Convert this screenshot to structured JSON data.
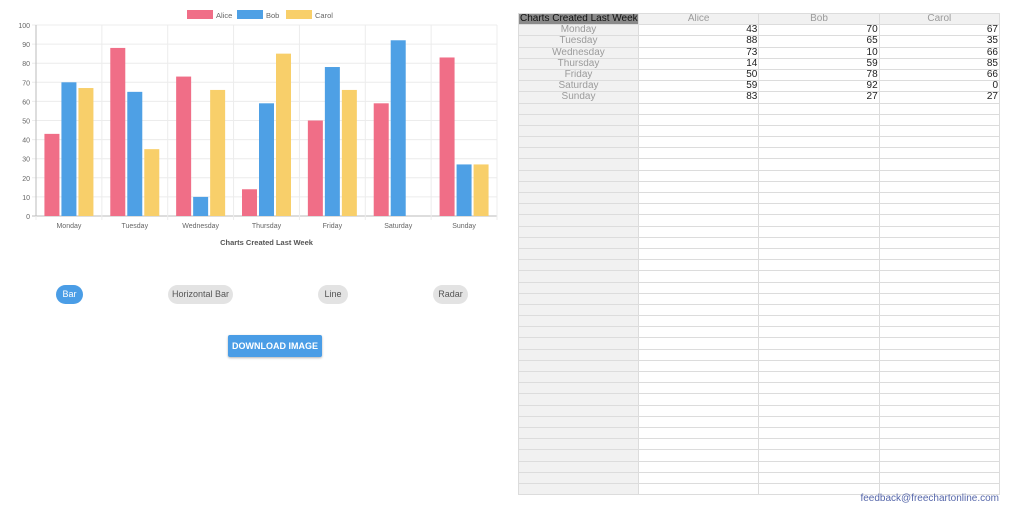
{
  "chart_data": {
    "type": "bar",
    "title": "Charts Created Last Week",
    "categories": [
      "Monday",
      "Tuesday",
      "Wednesday",
      "Thursday",
      "Friday",
      "Saturday",
      "Sunday"
    ],
    "series": [
      {
        "name": "Alice",
        "color": "#f06e87",
        "values": [
          43,
          88,
          73,
          14,
          50,
          59,
          83
        ]
      },
      {
        "name": "Bob",
        "color": "#4ea0e5",
        "values": [
          70,
          65,
          10,
          59,
          78,
          92,
          27
        ]
      },
      {
        "name": "Carol",
        "color": "#f8cf6a",
        "values": [
          67,
          35,
          66,
          85,
          66,
          0,
          27
        ]
      }
    ],
    "ylim": [
      0,
      100
    ],
    "yticks": [
      0,
      10,
      20,
      30,
      40,
      50,
      60,
      70,
      80,
      90,
      100
    ],
    "legend_position": "top",
    "grid": true
  },
  "chart_types": [
    {
      "label": "Bar",
      "active": true
    },
    {
      "label": "Horizontal Bar",
      "active": false
    },
    {
      "label": "Line",
      "active": false
    },
    {
      "label": "Radar",
      "active": false
    }
  ],
  "download_label": "DOWNLOAD IMAGE",
  "table": {
    "header": [
      "Charts Created Last Week",
      "Alice",
      "Bob",
      "Carol"
    ],
    "rows": [
      [
        "Monday",
        "43",
        "70",
        "67"
      ],
      [
        "Tuesday",
        "88",
        "65",
        "35"
      ],
      [
        "Wednesday",
        "73",
        "10",
        "66"
      ],
      [
        "Thursday",
        "14",
        "59",
        "85"
      ],
      [
        "Friday",
        "50",
        "78",
        "66"
      ],
      [
        "Saturday",
        "59",
        "92",
        "0"
      ],
      [
        "Sunday",
        "83",
        "27",
        "27"
      ]
    ]
  },
  "feedback_email": "feedback@freechartonline.com"
}
